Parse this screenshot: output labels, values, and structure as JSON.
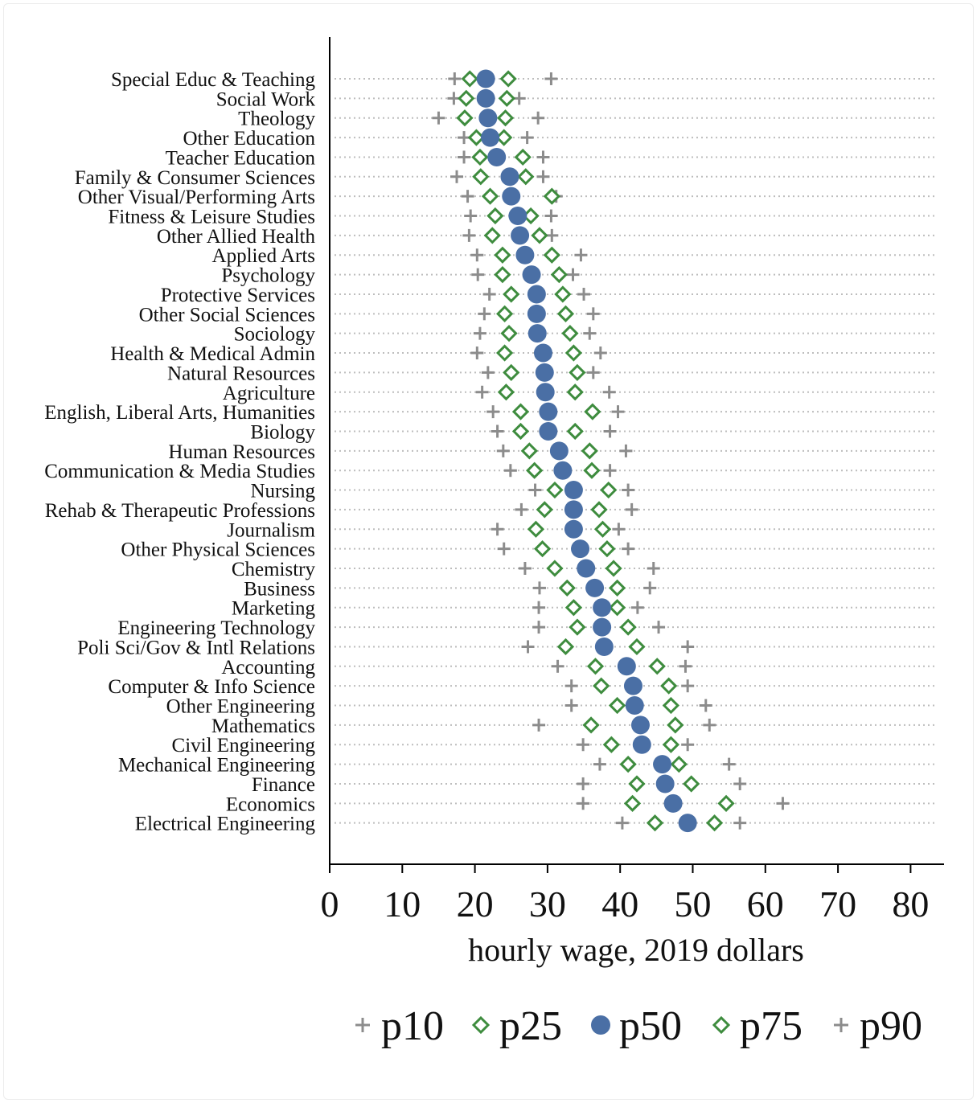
{
  "chart_data": {
    "type": "scatter",
    "xlabel": "hourly wage, 2019 dollars",
    "xlim": [
      0,
      84
    ],
    "xticks": [
      0,
      10,
      20,
      30,
      40,
      50,
      60,
      70,
      80
    ],
    "grid": "dotted horizontal lines",
    "legend_placement": "bottom",
    "legend": [
      "p10",
      "p25",
      "p50",
      "p75",
      "p90"
    ],
    "colors": {
      "p10": "#8c8c8c",
      "p90": "#8c8c8c",
      "p25": "#3e8c3e",
      "p75": "#3e8c3e",
      "p50": "#4a6fa5"
    },
    "categories": [
      "Special Educ & Teaching",
      "Social Work",
      "Theology",
      "Other Education",
      "Teacher Education",
      "Family & Consumer Sciences",
      "Other Visual/Performing Arts",
      "Fitness & Leisure Studies",
      "Other Allied Health",
      "Applied Arts",
      "Psychology",
      "Protective Services",
      "Other Social Sciences",
      "Sociology",
      "Health & Medical Admin",
      "Natural Resources",
      "Agriculture",
      "English, Liberal Arts, Humanities",
      "Biology",
      "Human Resources",
      "Communication & Media Studies",
      "Nursing",
      "Rehab & Therapeutic Professions",
      "Journalism",
      "Other Physical Sciences",
      "Chemistry",
      "Business",
      "Marketing",
      "Engineering Technology",
      "Poli Sci/Gov & Intl Relations",
      "Accounting",
      "Computer & Info Science",
      "Other Engineering",
      "Mathematics",
      "Civil Engineering",
      "Mechanical Engineering",
      "Finance",
      "Economics",
      "Electrical Engineering"
    ],
    "series": [
      {
        "name": "p10",
        "values": [
          17.2,
          17.1,
          15.0,
          18.5,
          18.5,
          17.5,
          19.0,
          19.4,
          19.2,
          20.3,
          20.4,
          22.0,
          21.3,
          20.7,
          20.3,
          21.8,
          21.0,
          22.5,
          23.1,
          23.9,
          24.9,
          28.3,
          26.4,
          23.1,
          24.0,
          26.9,
          28.9,
          28.8,
          28.8,
          27.3,
          31.4,
          33.3,
          33.3,
          28.8,
          34.9,
          37.2,
          34.9,
          34.9,
          40.3
        ]
      },
      {
        "name": "p25",
        "values": [
          19.3,
          18.8,
          18.6,
          20.2,
          20.7,
          20.8,
          22.1,
          22.8,
          22.4,
          23.8,
          23.8,
          25.0,
          24.1,
          24.7,
          24.1,
          25.0,
          24.3,
          26.3,
          26.3,
          27.5,
          28.2,
          31.0,
          29.6,
          28.4,
          29.3,
          31.0,
          32.7,
          33.6,
          34.1,
          32.5,
          36.6,
          37.4,
          39.6,
          36.0,
          38.8,
          41.1,
          42.3,
          41.7,
          44.8
        ]
      },
      {
        "name": "p50",
        "values": [
          21.5,
          21.5,
          21.8,
          22.1,
          23.0,
          24.8,
          25.0,
          25.9,
          26.2,
          26.9,
          27.8,
          28.5,
          28.5,
          28.6,
          29.4,
          29.6,
          29.7,
          30.1,
          30.1,
          31.6,
          32.1,
          33.6,
          33.6,
          33.6,
          34.5,
          35.3,
          36.5,
          37.5,
          37.5,
          37.8,
          40.9,
          41.8,
          42.0,
          42.8,
          43.0,
          45.8,
          46.2,
          47.3,
          49.3
        ]
      },
      {
        "name": "p75",
        "values": [
          24.6,
          24.4,
          24.2,
          24.0,
          26.6,
          27.0,
          30.6,
          27.7,
          28.9,
          30.6,
          31.6,
          32.1,
          32.5,
          33.1,
          33.6,
          34.1,
          33.8,
          36.2,
          33.8,
          35.8,
          36.1,
          38.4,
          37.1,
          37.6,
          38.2,
          39.1,
          39.6,
          39.6,
          41.1,
          42.3,
          45.1,
          46.7,
          47.0,
          47.6,
          47.0,
          48.1,
          49.8,
          54.6,
          53.0
        ]
      },
      {
        "name": "p90",
        "values": [
          30.5,
          26.1,
          28.7,
          27.2,
          29.4,
          29.4,
          31.2,
          30.5,
          30.6,
          34.6,
          33.5,
          35.0,
          36.3,
          35.8,
          37.3,
          36.3,
          38.5,
          39.7,
          38.6,
          40.8,
          38.6,
          41.1,
          41.6,
          39.8,
          41.1,
          44.6,
          44.1,
          42.4,
          45.3,
          49.3,
          49.0,
          49.3,
          51.8,
          52.3,
          49.3,
          55.0,
          56.5,
          62.4,
          56.5
        ]
      }
    ]
  }
}
